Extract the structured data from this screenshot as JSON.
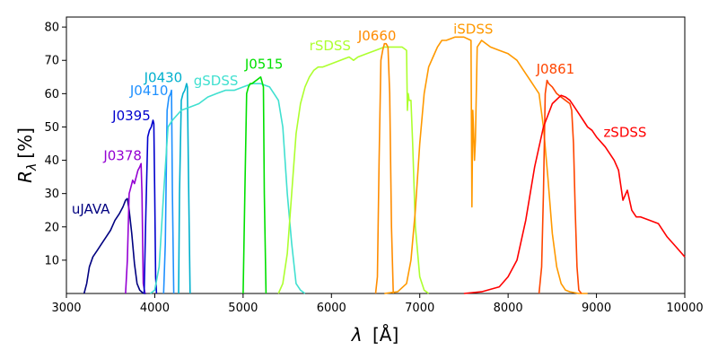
{
  "chart_data": {
    "type": "line",
    "title": "",
    "xlabel_var": "λ",
    "xlabel_unit": "[Å]",
    "ylabel_var": "R",
    "ylabel_sub": "λ",
    "ylabel_unit": "[%]",
    "xlim": [
      3000,
      10000
    ],
    "ylim": [
      0,
      83
    ],
    "grid": false,
    "legend": "none",
    "x_ticks": [
      3000,
      4000,
      5000,
      6000,
      7000,
      8000,
      9000,
      10000
    ],
    "y_ticks": [
      10,
      20,
      30,
      40,
      50,
      60,
      70,
      80
    ],
    "series": [
      {
        "name": "uJAVA",
        "color": "#000080",
        "label_x": 3060,
        "label_y": 24,
        "x": [
          3200,
          3230,
          3260,
          3300,
          3350,
          3400,
          3450,
          3500,
          3550,
          3600,
          3640,
          3670,
          3690,
          3710,
          3740,
          3770,
          3800,
          3830,
          3860,
          3880,
          3900
        ],
        "y": [
          0,
          3,
          8,
          11,
          13,
          15,
          17,
          19,
          22,
          24,
          26,
          28,
          28.5,
          25,
          18,
          9,
          3,
          1,
          0.3,
          0,
          0
        ]
      },
      {
        "name": "J0378",
        "color": "#9400D3",
        "label_x": 3420,
        "label_y": 40,
        "x": [
          3670,
          3690,
          3710,
          3730,
          3750,
          3770,
          3790,
          3810,
          3830,
          3845,
          3855,
          3870,
          3890
        ],
        "y": [
          0,
          10,
          30,
          32,
          34,
          33,
          35,
          37,
          38,
          39,
          30,
          3,
          0
        ]
      },
      {
        "name": "J0395",
        "color": "#0000CD",
        "label_x": 3520,
        "label_y": 52,
        "x": [
          3880,
          3900,
          3920,
          3940,
          3960,
          3980,
          3990,
          4000,
          4010,
          4020
        ],
        "y": [
          0,
          25,
          47,
          49,
          50,
          52,
          51,
          30,
          5,
          0
        ]
      },
      {
        "name": "J0410",
        "color": "#1E90FF",
        "label_x": 3720,
        "label_y": 59.5,
        "x": [
          4100,
          4120,
          4140,
          4160,
          4180,
          4190,
          4200,
          4215
        ],
        "y": [
          0,
          15,
          55,
          59,
          60,
          61,
          30,
          0
        ]
      },
      {
        "name": "J0430",
        "color": "#00B0CD",
        "label_x": 3880,
        "label_y": 63.5,
        "x": [
          4270,
          4280,
          4300,
          4320,
          4340,
          4360,
          4370,
          4380,
          4400
        ],
        "y": [
          0,
          30,
          58,
          60,
          61,
          63,
          62,
          40,
          0
        ]
      },
      {
        "name": "gSDSS",
        "color": "#40E0D0",
        "label_x": 4440,
        "label_y": 62.5,
        "x": [
          3950,
          4000,
          4050,
          4100,
          4150,
          4200,
          4300,
          4400,
          4500,
          4600,
          4700,
          4800,
          4900,
          5000,
          5100,
          5200,
          5300,
          5350,
          5400,
          5450,
          5500,
          5550,
          5600,
          5650,
          5700
        ],
        "y": [
          0,
          1,
          8,
          30,
          50,
          52,
          55,
          56,
          57,
          59,
          60,
          61,
          61,
          62,
          63,
          63,
          62,
          60,
          58,
          50,
          30,
          15,
          3,
          1,
          0
        ]
      },
      {
        "name": "J0515",
        "color": "#00E000",
        "label_x": 5020,
        "label_y": 67.5,
        "x": [
          5000,
          5020,
          5040,
          5060,
          5080,
          5100,
          5150,
          5200,
          5210,
          5220,
          5230,
          5240,
          5260
        ],
        "y": [
          0,
          30,
          60,
          62,
          63,
          63,
          64,
          65,
          64,
          63,
          62,
          30,
          0
        ]
      },
      {
        "name": "rSDSS",
        "color": "#ADFF2F",
        "label_x": 5750,
        "label_y": 73,
        "x": [
          5400,
          5450,
          5500,
          5550,
          5600,
          5650,
          5700,
          5750,
          5800,
          5850,
          5900,
          6000,
          6100,
          6200,
          6250,
          6300,
          6400,
          6500,
          6600,
          6700,
          6800,
          6850,
          6860,
          6870,
          6880,
          6900,
          6920,
          6950,
          7000,
          7050,
          7100
        ],
        "y": [
          0,
          3,
          12,
          30,
          48,
          57,
          62,
          65,
          67,
          68,
          68,
          69,
          70,
          71,
          70,
          71,
          72,
          73,
          74,
          74,
          74,
          73,
          55,
          60,
          58,
          58,
          45,
          20,
          5,
          1,
          0
        ]
      },
      {
        "name": "J0660",
        "color": "#FF8C00",
        "label_x": 6300,
        "label_y": 76,
        "x": [
          6500,
          6520,
          6540,
          6560,
          6580,
          6600,
          6620,
          6640,
          6660,
          6680,
          6700
        ],
        "y": [
          0,
          5,
          40,
          70,
          73,
          75,
          75,
          74,
          60,
          20,
          0
        ]
      },
      {
        "name": "iSDSS",
        "color": "#FF9900",
        "label_x": 7380,
        "label_y": 78,
        "x": [
          6600,
          6750,
          6850,
          6900,
          6950,
          7000,
          7050,
          7100,
          7150,
          7200,
          7250,
          7300,
          7400,
          7500,
          7580,
          7590,
          7600,
          7610,
          7620,
          7630,
          7650,
          7700,
          7800,
          7900,
          8000,
          8050,
          8100,
          8150,
          8200,
          8250,
          8300,
          8350,
          8400,
          8450,
          8500,
          8550,
          8600,
          8650,
          8700,
          8800,
          8900
        ],
        "y": [
          0,
          0.5,
          3,
          10,
          25,
          45,
          60,
          68,
          71,
          74,
          76,
          76,
          77,
          77,
          76,
          26,
          55,
          48,
          40,
          46,
          74,
          76,
          74,
          73,
          72,
          71,
          70,
          68,
          66,
          64,
          62,
          60,
          50,
          35,
          18,
          8,
          3,
          1,
          0.5,
          0,
          0
        ]
      },
      {
        "name": "J0861",
        "color": "#FF4500",
        "label_x": 8320,
        "label_y": 66,
        "x": [
          8350,
          8380,
          8400,
          8420,
          8440,
          8460,
          8500,
          8550,
          8600,
          8650,
          8700,
          8720,
          8740,
          8760,
          8780,
          8800,
          8830
        ],
        "y": [
          0,
          8,
          30,
          60,
          64,
          63,
          62,
          60,
          59,
          58,
          57,
          55,
          45,
          25,
          8,
          1,
          0
        ]
      },
      {
        "name": "zSDSS",
        "color": "#FF0000",
        "label_x": 9080,
        "label_y": 47,
        "x": [
          7500,
          7700,
          7900,
          8000,
          8100,
          8200,
          8300,
          8400,
          8500,
          8600,
          8650,
          8700,
          8750,
          8800,
          8850,
          8900,
          8950,
          9000,
          9100,
          9200,
          9250,
          9300,
          9350,
          9400,
          9450,
          9500,
          9600,
          9700,
          9800,
          9900,
          10000
        ],
        "y": [
          0,
          0.5,
          2,
          5,
          10,
          22,
          38,
          50,
          57,
          59.5,
          59,
          58,
          56,
          54,
          52,
          50,
          49,
          47,
          44,
          40,
          37,
          28,
          31,
          25,
          23,
          23,
          22,
          21,
          17,
          14,
          11
        ]
      }
    ]
  }
}
